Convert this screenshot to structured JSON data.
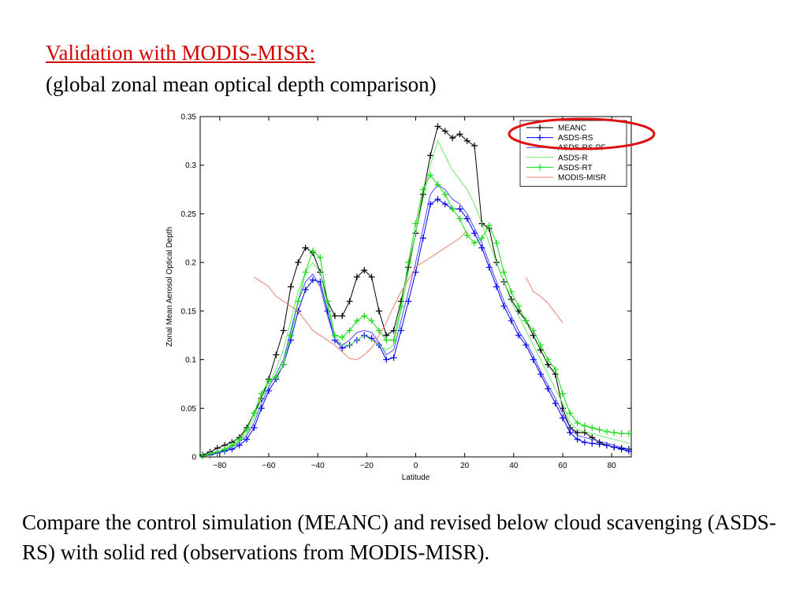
{
  "heading": {
    "title": "Validation with MODIS-MISR:",
    "subtitle": "(global zonal mean optical depth comparison)"
  },
  "caption": "Compare the control simulation (MEANC) and revised below cloud scavenging (ASDS-RS) with solid red (observations from MODIS-MISR).",
  "colors": {
    "title": "#d40000",
    "highlight_ellipse": "#e01010"
  },
  "chart_data": {
    "type": "line",
    "title": "",
    "xlabel": "Latitude",
    "ylabel": "Zonal Mean Aerosol Optical Depth",
    "xlim": [
      -88,
      88
    ],
    "ylim": [
      0,
      0.35
    ],
    "xticks": [
      -80,
      -60,
      -40,
      -20,
      0,
      20,
      40,
      60,
      80
    ],
    "yticks": [
      0,
      0.05,
      0.1,
      0.15,
      0.2,
      0.25,
      0.3,
      0.35
    ],
    "xtick_labels": [
      "−80",
      "−60",
      "−40",
      "−20",
      "0",
      "20",
      "40",
      "60",
      "80"
    ],
    "ytick_labels": [
      "0",
      "0.05",
      "0.1",
      "0.15",
      "0.2",
      "0.25",
      "0.3",
      "0.35"
    ],
    "grid": false,
    "legend_position": "top-right",
    "series": [
      {
        "name": "MEANC",
        "color": "#000000",
        "marker": "+",
        "x": [
          -87,
          -84,
          -81,
          -78,
          -75,
          -72,
          -69,
          -66,
          -63,
          -60,
          -57,
          -54,
          -51,
          -48,
          -45,
          -42,
          -39,
          -36,
          -33,
          -30,
          -27,
          -24,
          -21,
          -18,
          -15,
          -12,
          -9,
          -6,
          -3,
          0,
          3,
          6,
          9,
          12,
          15,
          18,
          21,
          24,
          27,
          30,
          33,
          36,
          39,
          42,
          45,
          48,
          51,
          54,
          57,
          60,
          63,
          66,
          69,
          72,
          75,
          78,
          81,
          84,
          87
        ],
        "y": [
          0.002,
          0.005,
          0.009,
          0.012,
          0.015,
          0.02,
          0.03,
          0.045,
          0.06,
          0.08,
          0.105,
          0.13,
          0.175,
          0.2,
          0.215,
          0.21,
          0.19,
          0.16,
          0.145,
          0.145,
          0.16,
          0.185,
          0.192,
          0.185,
          0.15,
          0.125,
          0.13,
          0.16,
          0.195,
          0.23,
          0.27,
          0.31,
          0.34,
          0.335,
          0.328,
          0.332,
          0.325,
          0.32,
          0.24,
          0.235,
          0.2,
          0.18,
          0.162,
          0.15,
          0.14,
          0.125,
          0.11,
          0.095,
          0.085,
          0.05,
          0.03,
          0.025,
          0.025,
          0.02,
          0.015,
          0.012,
          0.01,
          0.009,
          0.008
        ]
      },
      {
        "name": "ASDS-RS",
        "color": "#0000ee",
        "marker": "+",
        "x": [
          -87,
          -84,
          -81,
          -78,
          -75,
          -72,
          -69,
          -66,
          -63,
          -60,
          -57,
          -54,
          -51,
          -48,
          -45,
          -42,
          -39,
          -36,
          -33,
          -30,
          -27,
          -24,
          -21,
          -18,
          -15,
          -12,
          -9,
          -6,
          -3,
          0,
          3,
          6,
          9,
          12,
          15,
          18,
          21,
          24,
          27,
          30,
          33,
          36,
          39,
          42,
          45,
          48,
          51,
          54,
          57,
          60,
          63,
          66,
          69,
          72,
          75,
          78,
          81,
          84,
          87
        ],
        "y": [
          0.001,
          0.002,
          0.004,
          0.006,
          0.008,
          0.012,
          0.018,
          0.03,
          0.05,
          0.068,
          0.08,
          0.095,
          0.12,
          0.15,
          0.172,
          0.182,
          0.18,
          0.15,
          0.12,
          0.112,
          0.115,
          0.12,
          0.125,
          0.122,
          0.115,
          0.1,
          0.102,
          0.13,
          0.16,
          0.19,
          0.225,
          0.26,
          0.265,
          0.26,
          0.255,
          0.255,
          0.245,
          0.23,
          0.215,
          0.195,
          0.175,
          0.155,
          0.14,
          0.125,
          0.115,
          0.1,
          0.085,
          0.07,
          0.055,
          0.04,
          0.025,
          0.018,
          0.015,
          0.014,
          0.013,
          0.012,
          0.01,
          0.008,
          0.006
        ]
      },
      {
        "name": "ASDS-RS-PF",
        "color": "#4a4aff",
        "marker": "none",
        "x": [
          -87,
          -84,
          -81,
          -78,
          -75,
          -72,
          -69,
          -66,
          -63,
          -60,
          -57,
          -54,
          -51,
          -48,
          -45,
          -42,
          -39,
          -36,
          -33,
          -30,
          -27,
          -24,
          -21,
          -18,
          -15,
          -12,
          -9,
          -6,
          -3,
          0,
          3,
          6,
          9,
          12,
          15,
          18,
          21,
          24,
          27,
          30,
          33,
          36,
          39,
          42,
          45,
          48,
          51,
          54,
          57,
          60,
          63,
          66,
          69,
          72,
          75,
          78,
          81,
          84,
          87
        ],
        "y": [
          0.001,
          0.003,
          0.005,
          0.007,
          0.01,
          0.015,
          0.022,
          0.035,
          0.055,
          0.072,
          0.085,
          0.1,
          0.13,
          0.16,
          0.18,
          0.188,
          0.175,
          0.145,
          0.12,
          0.115,
          0.12,
          0.128,
          0.13,
          0.128,
          0.118,
          0.105,
          0.11,
          0.14,
          0.17,
          0.2,
          0.235,
          0.27,
          0.28,
          0.275,
          0.265,
          0.26,
          0.25,
          0.235,
          0.22,
          0.2,
          0.18,
          0.16,
          0.145,
          0.13,
          0.118,
          0.104,
          0.088,
          0.074,
          0.06,
          0.045,
          0.03,
          0.022,
          0.02,
          0.018,
          0.016,
          0.014,
          0.012,
          0.01,
          0.008
        ]
      },
      {
        "name": "ASDS-R",
        "color": "#66ee66",
        "marker": "none",
        "x": [
          -87,
          -84,
          -81,
          -78,
          -75,
          -72,
          -69,
          -66,
          -63,
          -60,
          -57,
          -54,
          -51,
          -48,
          -45,
          -42,
          -39,
          -36,
          -33,
          -30,
          -27,
          -24,
          -21,
          -18,
          -15,
          -12,
          -9,
          -6,
          -3,
          0,
          3,
          6,
          9,
          12,
          15,
          18,
          21,
          24,
          27,
          30,
          33,
          36,
          39,
          42,
          45,
          48,
          51,
          54,
          57,
          60,
          63,
          66,
          69,
          72,
          75,
          78,
          81,
          84,
          87
        ],
        "y": [
          0.001,
          0.003,
          0.005,
          0.008,
          0.011,
          0.016,
          0.025,
          0.04,
          0.06,
          0.075,
          0.09,
          0.11,
          0.14,
          0.17,
          0.19,
          0.2,
          0.19,
          0.155,
          0.125,
          0.115,
          0.115,
          0.12,
          0.125,
          0.12,
          0.115,
          0.11,
          0.115,
          0.15,
          0.19,
          0.23,
          0.265,
          0.3,
          0.325,
          0.31,
          0.295,
          0.285,
          0.275,
          0.26,
          0.24,
          0.22,
          0.2,
          0.18,
          0.16,
          0.145,
          0.13,
          0.115,
          0.1,
          0.085,
          0.07,
          0.055,
          0.035,
          0.028,
          0.026,
          0.024,
          0.022,
          0.02,
          0.018,
          0.016,
          0.014
        ]
      },
      {
        "name": "ASDS-RT",
        "color": "#11dd11",
        "marker": "+",
        "x": [
          -87,
          -84,
          -81,
          -78,
          -75,
          -72,
          -69,
          -66,
          -63,
          -60,
          -57,
          -54,
          -51,
          -48,
          -45,
          -42,
          -39,
          -36,
          -33,
          -30,
          -27,
          -24,
          -21,
          -18,
          -15,
          -12,
          -9,
          -6,
          -3,
          0,
          3,
          6,
          9,
          12,
          15,
          18,
          21,
          24,
          27,
          30,
          33,
          36,
          39,
          42,
          45,
          48,
          51,
          54,
          57,
          60,
          63,
          66,
          69,
          72,
          75,
          78,
          81,
          84,
          87
        ],
        "y": [
          0.001,
          0.003,
          0.005,
          0.008,
          0.012,
          0.018,
          0.028,
          0.045,
          0.065,
          0.078,
          0.082,
          0.095,
          0.125,
          0.16,
          0.19,
          0.212,
          0.205,
          0.16,
          0.125,
          0.123,
          0.13,
          0.14,
          0.145,
          0.14,
          0.13,
          0.12,
          0.12,
          0.155,
          0.2,
          0.24,
          0.275,
          0.29,
          0.28,
          0.27,
          0.255,
          0.245,
          0.228,
          0.22,
          0.225,
          0.238,
          0.22,
          0.19,
          0.17,
          0.155,
          0.14,
          0.13,
          0.115,
          0.1,
          0.09,
          0.065,
          0.045,
          0.035,
          0.032,
          0.03,
          0.028,
          0.026,
          0.025,
          0.024,
          0.024
        ]
      },
      {
        "name": "MODIS-MISR",
        "color": "#f08070",
        "marker": "none",
        "segments": [
          {
            "x": [
              -66,
              -63,
              -60,
              -57,
              -54,
              -51,
              -48,
              -45,
              -42,
              -39,
              -36,
              -33,
              -30,
              -27,
              -24,
              -21,
              -18,
              -15,
              -12,
              -9,
              -6,
              -3,
              0,
              3,
              6,
              9,
              12,
              15,
              18,
              21
            ],
            "y": [
              0.185,
              0.18,
              0.175,
              0.165,
              0.16,
              0.155,
              0.15,
              0.14,
              0.13,
              0.125,
              0.12,
              0.115,
              0.108,
              0.101,
              0.1,
              0.105,
              0.112,
              0.125,
              0.138,
              0.155,
              0.17,
              0.182,
              0.196,
              0.2,
              0.205,
              0.21,
              0.215,
              0.22,
              0.225,
              0.233
            ]
          },
          {
            "x": [
              45,
              48,
              51,
              54,
              57,
              60
            ],
            "y": [
              0.185,
              0.17,
              0.165,
              0.158,
              0.148,
              0.138
            ]
          }
        ]
      }
    ]
  }
}
